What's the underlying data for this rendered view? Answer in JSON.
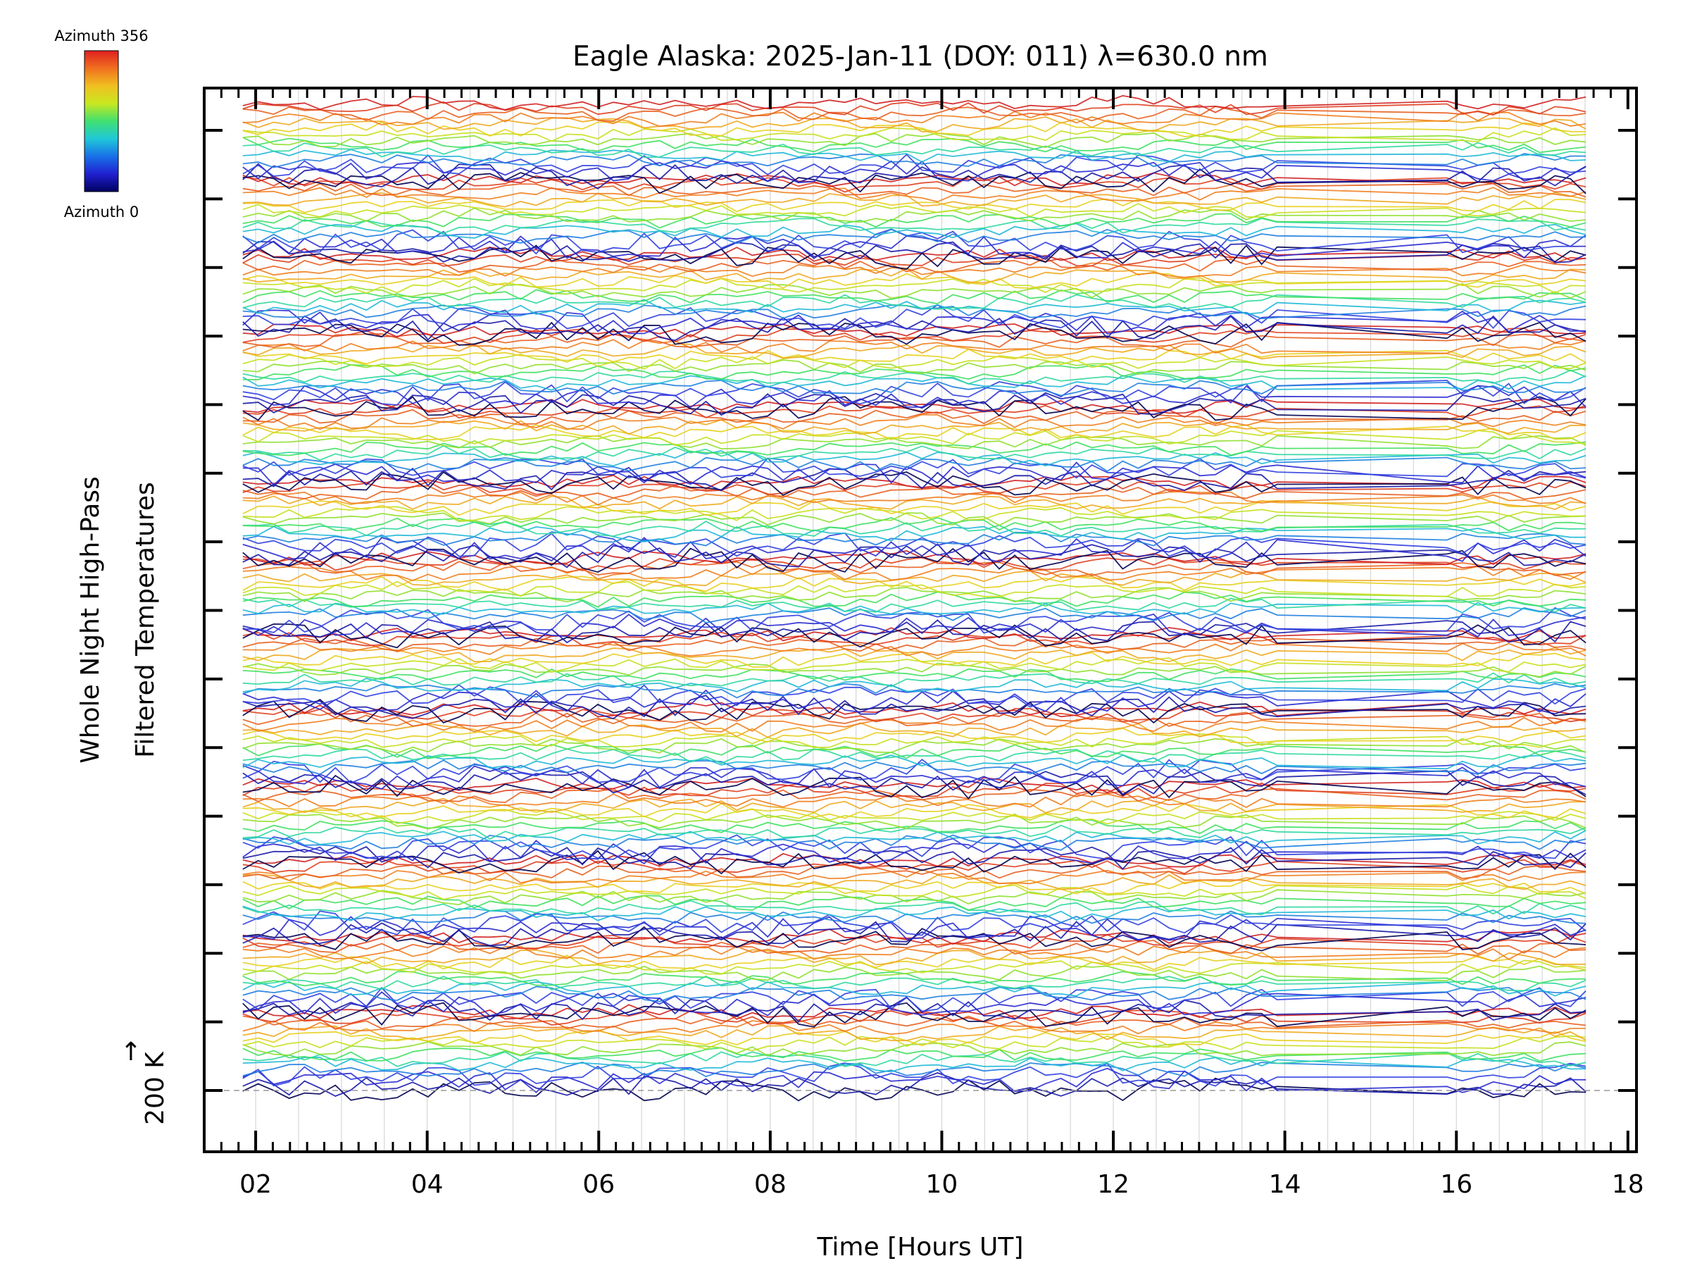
{
  "chart_data": {
    "type": "line",
    "title": "Eagle Alaska: 2025-Jan-11 (DOY: 011) λ=630.0 nm",
    "xlabel": "Time [Hours UT]",
    "ylabel_line1": "Whole Night High-Pass",
    "ylabel_line2": "Filtered Temperatures",
    "scale_label": "200 K",
    "scale_arrow": "↑",
    "xlim": [
      1.4,
      18.1
    ],
    "x_ticks": [
      "02",
      "04",
      "06",
      "08",
      "10",
      "12",
      "14",
      "16",
      "18"
    ],
    "x_tick_values": [
      2,
      4,
      6,
      8,
      10,
      12,
      14,
      16,
      18
    ],
    "y_ticks_count": 15,
    "colorbar": {
      "top_label": "Azimuth 356",
      "bottom_label": "Azimuth 0",
      "colors": [
        "#000060",
        "#2020d0",
        "#1870e8",
        "#20c8d8",
        "#40e070",
        "#c8e820",
        "#f0c020",
        "#f07020",
        "#e02020"
      ]
    },
    "data_time_range": [
      1.85,
      17.6
    ],
    "gap_hours": [
      14.0,
      15.9
    ],
    "series_groups": 13,
    "series_per_group": 16,
    "grid": "vertical"
  }
}
